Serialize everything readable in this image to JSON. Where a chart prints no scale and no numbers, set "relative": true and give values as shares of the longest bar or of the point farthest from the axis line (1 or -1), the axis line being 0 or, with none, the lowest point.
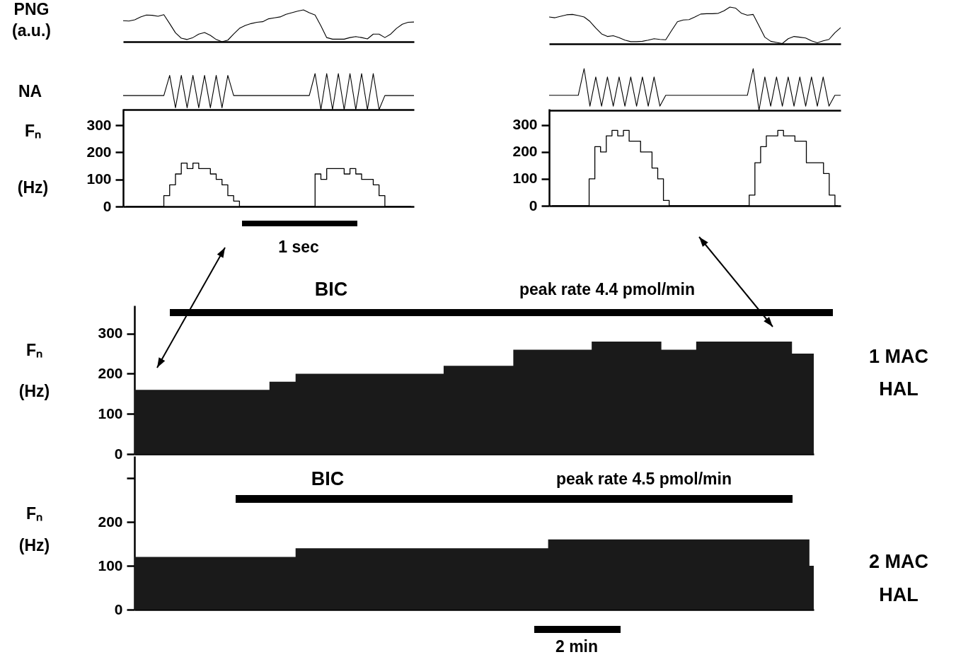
{
  "chart_data": [
    {
      "type": "line",
      "ylabel": "PNG (a.u.)",
      "relative": true,
      "tick_labels": false,
      "categories": [
        null,
        null,
        null,
        null,
        null,
        null,
        null,
        null,
        null,
        null,
        null,
        null,
        null,
        null,
        null,
        null,
        null,
        null,
        null,
        null,
        null,
        null,
        null,
        null,
        null,
        null,
        null,
        null,
        null,
        null,
        null,
        null,
        null,
        null,
        null,
        null,
        null,
        null,
        null,
        null,
        null,
        null,
        null,
        null,
        null,
        null,
        null,
        null,
        null,
        null,
        null
      ],
      "series": [
        {
          "color": "#000000",
          "values": [
            0.66,
            0.65,
            0.69,
            0.78,
            0.84,
            0.83,
            0.8,
            0.85,
            0.57,
            0.28,
            0.11,
            0.07,
            0.13,
            0.24,
            0.29,
            0.2,
            0.07,
            0,
            0.05,
            0.24,
            0.42,
            0.51,
            0.57,
            0.61,
            0.63,
            0.72,
            0.75,
            0.78,
            0.86,
            0.91,
            0.96,
            1,
            0.91,
            0.84,
            0.5,
            0.13,
            0.08,
            0.08,
            0.08,
            0.13,
            0.16,
            0.13,
            0.09,
            0.24,
            0.24,
            0.13,
            0.24,
            0.42,
            0.55,
            0.61,
            0.62
          ]
        }
      ]
    },
    {
      "type": "line",
      "relative": true,
      "tick_labels": false,
      "categories": [
        null,
        null,
        null,
        null,
        null,
        null,
        null,
        null,
        null,
        null,
        null,
        null,
        null,
        null,
        null,
        null,
        null,
        null,
        null,
        null,
        null,
        null,
        null,
        null,
        null,
        null,
        null,
        null,
        null,
        null,
        null,
        null,
        null,
        null,
        null,
        null,
        null,
        null,
        null,
        null,
        null,
        null,
        null,
        null,
        null,
        null,
        null,
        null,
        null,
        null,
        null
      ],
      "series": [
        {
          "color": "#000000",
          "values": [
            0.73,
            0.71,
            0.75,
            0.79,
            0.8,
            0.77,
            0.73,
            0.61,
            0.43,
            0.27,
            0.2,
            0.22,
            0.17,
            0.1,
            0.06,
            0.06,
            0.07,
            0.1,
            0.14,
            0.12,
            0.11,
            0.36,
            0.6,
            0.65,
            0.66,
            0.73,
            0.81,
            0.82,
            0.82,
            0.83,
            0.9,
            1,
            0.97,
            0.83,
            0.78,
            0.8,
            0.49,
            0.18,
            0.07,
            0.04,
            0.01,
            0.14,
            0.2,
            0.18,
            0.16,
            0.08,
            0.03,
            0.08,
            0.12,
            0.3,
            0.44
          ]
        }
      ]
    },
    {
      "type": "line",
      "ylabel": "NA",
      "relative": true,
      "tick_labels": false,
      "categories": [
        null,
        null,
        null,
        null,
        null,
        null,
        null,
        null,
        null,
        null,
        null,
        null,
        null,
        null,
        null,
        null,
        null,
        null,
        null,
        null,
        null,
        null,
        null,
        null,
        null,
        null,
        null,
        null,
        null,
        null,
        null,
        null,
        null,
        null,
        null,
        null,
        null,
        null,
        null,
        null,
        null,
        null,
        null,
        null,
        null,
        null,
        null,
        null,
        null,
        null,
        null
      ],
      "series": [
        {
          "color": "#000000",
          "values": [
            0.39,
            0.39,
            0.39,
            0.39,
            0.39,
            0.39,
            0.39,
            0.39,
            0.95,
            0.05,
            0.95,
            0.05,
            0.95,
            0.05,
            0.95,
            0.05,
            0.95,
            0.05,
            0.95,
            0.39,
            0.39,
            0.39,
            0.39,
            0.39,
            0.39,
            0.39,
            0.39,
            0.39,
            0.39,
            0.39,
            0.39,
            0.39,
            0.39,
            1,
            0,
            1,
            0,
            1,
            0,
            1,
            0,
            1,
            0,
            1,
            0,
            0.39,
            0.39,
            0.39,
            0.39,
            0.39,
            0.39
          ]
        }
      ]
    },
    {
      "type": "line",
      "relative": true,
      "tick_labels": false,
      "categories": [
        null,
        null,
        null,
        null,
        null,
        null,
        null,
        null,
        null,
        null,
        null,
        null,
        null,
        null,
        null,
        null,
        null,
        null,
        null,
        null,
        null,
        null,
        null,
        null,
        null,
        null,
        null,
        null,
        null,
        null,
        null,
        null,
        null,
        null,
        null,
        null,
        null,
        null,
        null,
        null,
        null,
        null,
        null,
        null,
        null,
        null,
        null,
        null,
        null,
        null,
        null
      ],
      "series": [
        {
          "color": "#000000",
          "values": [
            0.36,
            0.36,
            0.36,
            0.36,
            0.36,
            0.36,
            1,
            0.1,
            0.8,
            0.1,
            0.8,
            0.1,
            0.8,
            0.1,
            0.8,
            0.1,
            0.8,
            0.1,
            0.8,
            0.1,
            0.36,
            0.36,
            0.36,
            0.36,
            0.36,
            0.36,
            0.36,
            0.36,
            0.36,
            0.36,
            0.36,
            0.36,
            0.36,
            0.36,
            0.36,
            1,
            0,
            0.8,
            0.1,
            0.8,
            0.1,
            0.8,
            0.1,
            0.8,
            0.1,
            0.8,
            0.1,
            0.8,
            0.1,
            0.36,
            0.36
          ]
        }
      ]
    },
    {
      "type": "step",
      "ylabel": "Fₙ (Hz)",
      "tick_labels": "y",
      "ylim": [
        0,
        360
      ],
      "yticks": [
        0,
        100,
        200,
        300
      ],
      "annotations": [
        "1 sec"
      ],
      "categories": [
        null,
        null,
        null,
        null,
        null,
        null,
        null,
        null,
        null,
        null,
        null,
        null,
        null,
        null,
        null,
        null,
        null,
        null,
        null,
        null,
        null,
        null,
        null,
        null,
        null,
        null,
        null,
        null,
        null,
        null,
        null,
        null,
        null,
        null,
        null,
        null,
        null,
        null,
        null,
        null,
        null,
        null,
        null,
        null,
        null,
        null,
        null,
        null,
        null,
        null
      ],
      "series": [
        {
          "color": "#000000",
          "values": [
            0,
            0,
            0,
            0,
            0,
            0,
            0,
            40,
            80,
            120,
            160,
            140,
            160,
            140,
            140,
            120,
            100,
            80,
            40,
            20,
            0,
            0,
            0,
            0,
            0,
            0,
            0,
            0,
            0,
            0,
            0,
            0,
            0,
            120,
            100,
            140,
            140,
            140,
            120,
            140,
            120,
            100,
            100,
            80,
            40,
            0,
            0,
            0,
            0,
            0
          ]
        }
      ]
    },
    {
      "type": "step",
      "tick_labels": "y",
      "ylim": [
        0,
        360
      ],
      "yticks": [
        0,
        100,
        200,
        300
      ],
      "categories": [
        null,
        null,
        null,
        null,
        null,
        null,
        null,
        null,
        null,
        null,
        null,
        null,
        null,
        null,
        null,
        null,
        null,
        null,
        null,
        null,
        null,
        null,
        null,
        null,
        null,
        null,
        null,
        null,
        null,
        null,
        null,
        null,
        null,
        null,
        null,
        null,
        null,
        null,
        null,
        null,
        null,
        null,
        null,
        null,
        null,
        null,
        null,
        null,
        null,
        null,
        null
      ],
      "series": [
        {
          "color": "#000000",
          "values": [
            0,
            0,
            0,
            0,
            0,
            0,
            0,
            100,
            220,
            200,
            260,
            280,
            260,
            280,
            240,
            240,
            200,
            200,
            140,
            100,
            20,
            0,
            0,
            0,
            0,
            0,
            0,
            0,
            0,
            0,
            0,
            0,
            0,
            0,
            0,
            40,
            160,
            220,
            260,
            260,
            280,
            260,
            260,
            240,
            240,
            160,
            160,
            160,
            120,
            40,
            0
          ]
        }
      ]
    },
    {
      "type": "area",
      "ylabel": "Fₙ (Hz)",
      "tick_labels": "y",
      "ylim": [
        0,
        370
      ],
      "yticks": [
        0,
        100,
        200,
        300
      ],
      "annotations": [
        "BIC",
        "peak rate 4.4 pmol/min",
        "1 MAC HAL"
      ],
      "categories": [
        null,
        null,
        null,
        null,
        null,
        null,
        null,
        null,
        null,
        null,
        null,
        null,
        null,
        null,
        null,
        null,
        null,
        null,
        null,
        null,
        null,
        null,
        null,
        null,
        null,
        null,
        null,
        null,
        null,
        null,
        null,
        null,
        null,
        null,
        null,
        null,
        null,
        null,
        null,
        null,
        null,
        null,
        null,
        null,
        null,
        null,
        null,
        null,
        null,
        null,
        null,
        null,
        null,
        null,
        null,
        null,
        null,
        null,
        null,
        null,
        null,
        null,
        null,
        null,
        null,
        null,
        null,
        null,
        null,
        null,
        null,
        null,
        null,
        null,
        null,
        null,
        null,
        null,
        null
      ],
      "series": [
        {
          "color": "#1a1a1a",
          "values": [
            160,
            160,
            160,
            160,
            160,
            160,
            160,
            160,
            160,
            160,
            160,
            160,
            160,
            160,
            160,
            160,
            180,
            180,
            180,
            200,
            200,
            200,
            200,
            200,
            200,
            200,
            200,
            200,
            200,
            200,
            200,
            200,
            200,
            200,
            200,
            200,
            220,
            220,
            220,
            220,
            220,
            220,
            220,
            220,
            260,
            260,
            260,
            260,
            260,
            260,
            260,
            260,
            260,
            280,
            280,
            280,
            280,
            280,
            280,
            280,
            280,
            260,
            260,
            260,
            260,
            280,
            280,
            280,
            280,
            280,
            280,
            280,
            280,
            280,
            280,
            280,
            250,
            250,
            250
          ]
        }
      ]
    },
    {
      "type": "area",
      "ylabel": "Fₙ (Hz)",
      "tick_labels": "y",
      "ylim": [
        0,
        350
      ],
      "yticks": [
        0,
        100,
        200,
        {
          "value": 300,
          "label": null
        }
      ],
      "annotations": [
        "BIC",
        "peak rate 4.5 pmol/min",
        "2 MAC HAL",
        "2 min"
      ],
      "categories": [
        null,
        null,
        null,
        null,
        null,
        null,
        null,
        null,
        null,
        null,
        null,
        null,
        null,
        null,
        null,
        null,
        null,
        null,
        null,
        null,
        null,
        null,
        null,
        null,
        null,
        null,
        null,
        null,
        null,
        null,
        null,
        null,
        null,
        null,
        null,
        null,
        null,
        null,
        null,
        null,
        null,
        null,
        null,
        null,
        null,
        null,
        null,
        null,
        null,
        null,
        null,
        null,
        null,
        null,
        null,
        null,
        null,
        null,
        null,
        null,
        null,
        null,
        null,
        null,
        null,
        null,
        null,
        null,
        null,
        null,
        null,
        null,
        null,
        null,
        null,
        null,
        null,
        null,
        null
      ],
      "series": [
        {
          "color": "#1a1a1a",
          "values": [
            120,
            120,
            120,
            120,
            120,
            120,
            120,
            120,
            120,
            120,
            120,
            120,
            120,
            120,
            120,
            120,
            120,
            120,
            120,
            140,
            140,
            140,
            140,
            140,
            140,
            140,
            140,
            140,
            140,
            140,
            140,
            140,
            140,
            140,
            140,
            140,
            140,
            140,
            140,
            140,
            140,
            140,
            140,
            140,
            140,
            140,
            140,
            140,
            160,
            160,
            160,
            160,
            160,
            160,
            160,
            160,
            160,
            160,
            160,
            160,
            160,
            160,
            160,
            160,
            160,
            160,
            160,
            160,
            160,
            160,
            160,
            160,
            160,
            160,
            160,
            160,
            160,
            160,
            100
          ]
        }
      ]
    }
  ]
}
